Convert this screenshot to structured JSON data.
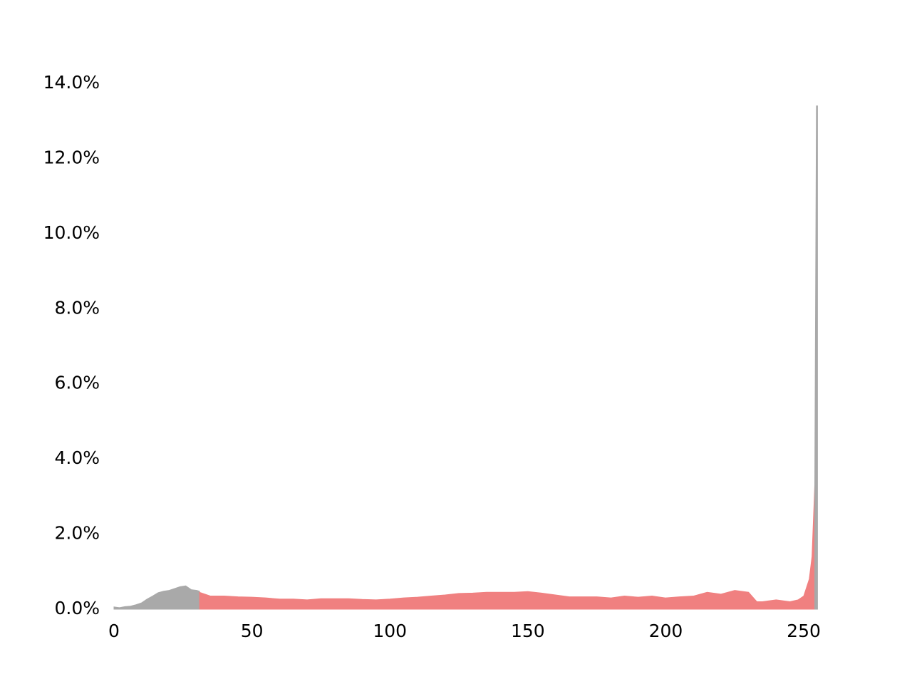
{
  "chart_data": {
    "type": "area",
    "series": [
      {
        "color": "#a9a9a9",
        "x": [
          0,
          2,
          4,
          6,
          8,
          10,
          12,
          14,
          16,
          18,
          20,
          22,
          24,
          26,
          28,
          30,
          31
        ],
        "values": [
          0.06,
          0.04,
          0.07,
          0.08,
          0.12,
          0.17,
          0.27,
          0.35,
          0.44,
          0.48,
          0.5,
          0.55,
          0.6,
          0.62,
          0.52,
          0.5,
          0.48
        ]
      },
      {
        "color": "#f08080",
        "x": [
          31,
          35,
          40,
          45,
          50,
          55,
          60,
          65,
          70,
          75,
          80,
          85,
          90,
          95,
          100,
          105,
          110,
          115,
          120,
          125,
          130,
          135,
          140,
          145,
          150,
          155,
          160,
          165,
          170,
          175,
          180,
          185,
          190,
          195,
          200,
          205,
          210,
          215,
          220,
          225,
          230,
          233,
          235,
          240,
          245,
          248,
          250,
          252,
          253,
          254
        ],
        "values": [
          0.45,
          0.35,
          0.35,
          0.33,
          0.32,
          0.3,
          0.27,
          0.27,
          0.25,
          0.28,
          0.28,
          0.28,
          0.26,
          0.25,
          0.27,
          0.3,
          0.32,
          0.35,
          0.38,
          0.42,
          0.43,
          0.45,
          0.45,
          0.45,
          0.47,
          0.43,
          0.38,
          0.33,
          0.33,
          0.33,
          0.3,
          0.35,
          0.32,
          0.35,
          0.3,
          0.33,
          0.35,
          0.45,
          0.4,
          0.5,
          0.45,
          0.2,
          0.2,
          0.25,
          0.2,
          0.25,
          0.35,
          0.8,
          1.4,
          3.3
        ]
      },
      {
        "color": "#a9a9a9",
        "x": [
          254,
          254.6,
          255
        ],
        "values": [
          3.3,
          13.4,
          13.4
        ]
      }
    ],
    "xlim": [
      0,
      255
    ],
    "ylim": [
      0,
      14
    ],
    "xticks": [
      0,
      50,
      100,
      150,
      200,
      250
    ],
    "yticks": [
      {
        "value": 0,
        "label": "0.0%"
      },
      {
        "value": 2,
        "label": "2.0%"
      },
      {
        "value": 4,
        "label": "4.0%"
      },
      {
        "value": 6,
        "label": "6.0%"
      },
      {
        "value": 8,
        "label": "8.0%"
      },
      {
        "value": 10,
        "label": "10.0%"
      },
      {
        "value": 12,
        "label": "12.0%"
      },
      {
        "value": 14,
        "label": "14.0%"
      }
    ],
    "grid": false
  }
}
